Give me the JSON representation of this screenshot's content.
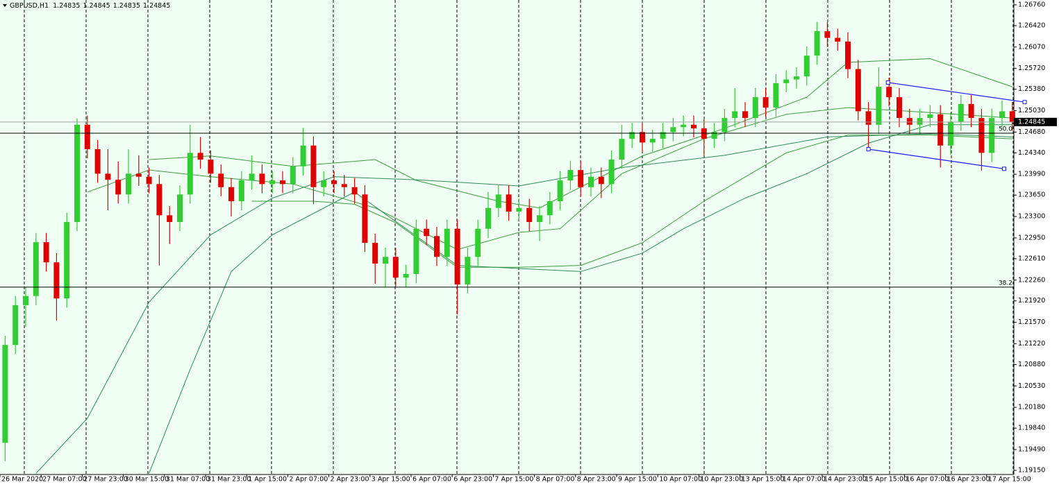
{
  "chart_data": {
    "type": "candlestick",
    "title": "GBPUSD,H1",
    "quote": [
      1.24835,
      1.24845,
      1.24835,
      1.24845
    ],
    "categories": [
      "26 Mar 2020",
      null,
      null,
      null,
      "27 Mar 07:00",
      null,
      null,
      null,
      "27 Mar 23:00",
      null,
      null,
      null,
      "30 Mar 15:00",
      null,
      null,
      null,
      "31 Mar 07:00",
      null,
      null,
      null,
      "31 Mar 23:00",
      null,
      null,
      null,
      "1 Apr 15:00",
      null,
      null,
      null,
      "2 Apr 07:00",
      null,
      null,
      null,
      "2 Apr 23:00",
      null,
      null,
      null,
      "3 Apr 15:00",
      null,
      null,
      null,
      "6 Apr 07:00",
      null,
      null,
      null,
      "6 Apr 23:00",
      null,
      null,
      null,
      "7 Apr 15:00",
      null,
      null,
      null,
      "8 Apr 07:00",
      null,
      null,
      null,
      "8 Apr 23:00",
      null,
      null,
      null,
      "9 Apr 15:00",
      null,
      null,
      null,
      "10 Apr 07:00",
      null,
      null,
      null,
      "10 Apr 23:00",
      null,
      null,
      null,
      "13 Apr 15:00",
      null,
      null,
      null,
      "14 Apr 07:00",
      null,
      null,
      null,
      "14 Apr 23:00",
      null,
      null,
      null,
      "15 Apr 15:00",
      null,
      null,
      null,
      "16 Apr 07:00",
      null,
      null,
      null,
      "16 Apr 23:00",
      null,
      null,
      null,
      "17 Apr 15:00",
      null,
      null
    ],
    "open": [
      1.196,
      1.212,
      1.2185,
      1.22,
      1.2288,
      1.2255,
      1.2196,
      1.2321,
      1.248,
      1.244,
      1.24,
      1.239,
      1.2366,
      1.24,
      1.2395,
      1.2383,
      1.2332,
      1.2321,
      1.2366,
      1.2434,
      1.2423,
      1.24,
      1.2378,
      1.2355,
      1.2389,
      1.24,
      1.2383,
      1.2389,
      1.2383,
      1.2412,
      1.2446,
      1.2378,
      1.2389,
      1.2383,
      1.2378,
      1.2366,
      1.2287,
      1.2253,
      1.2264,
      1.223,
      1.2236,
      1.231,
      1.2298,
      1.2264,
      1.231,
      1.2219,
      1.2264,
      1.231,
      1.2344,
      1.2366,
      1.2338,
      1.2344,
      1.2321,
      1.2332,
      1.2355,
      1.2389,
      1.2406,
      1.2378,
      1.2395,
      1.2383,
      1.2423,
      1.2457,
      1.2468,
      1.2451,
      1.2457,
      1.2468,
      1.2476,
      1.248,
      1.2474,
      1.2457,
      1.2468,
      1.2491,
      1.2502,
      1.2491,
      1.2525,
      1.2508,
      1.2548,
      1.2554,
      1.2559,
      1.2593,
      1.2633,
      1.2622,
      1.2616,
      1.2571,
      1.2502,
      1.248,
      1.2542,
      1.2525,
      1.2491,
      1.248,
      1.2491,
      1.2497,
      1.2446,
      1.2485,
      1.2514,
      1.2491,
      1.2434,
      1.2491,
      1.2502
    ],
    "high": [
      1.2135,
      1.22,
      1.2215,
      1.2303,
      1.2303,
      1.227,
      1.2336,
      1.249,
      1.2495,
      1.2455,
      1.244,
      1.242,
      1.244,
      1.243,
      1.241,
      1.2398,
      1.2347,
      1.2381,
      1.248,
      1.246,
      1.2438,
      1.2415,
      1.2393,
      1.2404,
      1.243,
      1.2415,
      1.2404,
      1.2404,
      1.2427,
      1.2475,
      1.2461,
      1.2404,
      1.2404,
      1.2398,
      1.2393,
      1.2381,
      1.2302,
      1.2279,
      1.2279,
      1.2251,
      1.2325,
      1.2325,
      1.2313,
      1.2325,
      1.2325,
      1.2279,
      1.2325,
      1.237,
      1.2381,
      1.2381,
      1.2359,
      1.2359,
      1.2347,
      1.237,
      1.2404,
      1.2421,
      1.2421,
      1.241,
      1.241,
      1.2438,
      1.248,
      1.2483,
      1.2483,
      1.2472,
      1.2483,
      1.2491,
      1.2495,
      1.2495,
      1.2489,
      1.2483,
      1.2506,
      1.254,
      1.2517,
      1.254,
      1.254,
      1.2563,
      1.2569,
      1.2574,
      1.2608,
      1.2648,
      1.2648,
      1.2637,
      1.2631,
      1.2586,
      1.2517,
      1.2574,
      1.2557,
      1.254,
      1.2506,
      1.2506,
      1.2512,
      1.2512,
      1.25,
      1.2529,
      1.2529,
      1.2506,
      1.2506,
      1.252,
      1.2517
    ],
    "low": [
      1.193,
      1.2105,
      1.215,
      1.2185,
      1.224,
      1.216,
      1.2181,
      1.2306,
      1.2425,
      1.2385,
      1.234,
      1.2351,
      1.2351,
      1.238,
      1.2368,
      1.225,
      1.2285,
      1.2306,
      1.2351,
      1.2408,
      1.2385,
      1.2363,
      1.233,
      1.234,
      1.2374,
      1.2368,
      1.2368,
      1.2368,
      1.2368,
      1.2397,
      1.235,
      1.2363,
      1.2368,
      1.2363,
      1.2351,
      1.2272,
      1.222,
      1.2215,
      1.2215,
      1.2215,
      1.2221,
      1.2283,
      1.2249,
      1.2249,
      1.217,
      1.2204,
      1.2249,
      1.2295,
      1.2329,
      1.2323,
      1.2323,
      1.2306,
      1.229,
      1.2317,
      1.234,
      1.2374,
      1.2363,
      1.2363,
      1.236,
      1.2368,
      1.2408,
      1.2442,
      1.2436,
      1.2436,
      1.2442,
      1.2453,
      1.2461,
      1.2459,
      1.243,
      1.2442,
      1.2453,
      1.2476,
      1.2476,
      1.2476,
      1.2493,
      1.2493,
      1.2533,
      1.2539,
      1.2544,
      1.2578,
      1.2607,
      1.2601,
      1.2556,
      1.2487,
      1.244,
      1.2465,
      1.251,
      1.2476,
      1.2465,
      1.2465,
      1.2476,
      1.241,
      1.2431,
      1.247,
      1.2476,
      1.2405,
      1.2419,
      1.2476,
      1.247
    ],
    "close": [
      1.212,
      1.2185,
      1.22,
      1.2288,
      1.2255,
      1.2196,
      1.2321,
      1.248,
      1.244,
      1.24,
      1.239,
      1.2366,
      1.24,
      1.2395,
      1.2383,
      1.2332,
      1.2321,
      1.2366,
      1.2434,
      1.2423,
      1.24,
      1.2378,
      1.2355,
      1.2389,
      1.24,
      1.2383,
      1.2389,
      1.2383,
      1.2412,
      1.2446,
      1.2378,
      1.2389,
      1.2383,
      1.2378,
      1.2366,
      1.2287,
      1.2253,
      1.2264,
      1.223,
      1.2236,
      1.231,
      1.2298,
      1.2264,
      1.231,
      1.2219,
      1.2264,
      1.231,
      1.2344,
      1.2366,
      1.2338,
      1.2344,
      1.2321,
      1.2332,
      1.2355,
      1.2389,
      1.2406,
      1.2378,
      1.2395,
      1.2383,
      1.2423,
      1.2457,
      1.2468,
      1.2451,
      1.2457,
      1.2468,
      1.2476,
      1.248,
      1.2474,
      1.2457,
      1.2468,
      1.2491,
      1.2502,
      1.2491,
      1.2525,
      1.2508,
      1.2548,
      1.2554,
      1.2559,
      1.2593,
      1.2633,
      1.2622,
      1.2616,
      1.2571,
      1.2502,
      1.248,
      1.2542,
      1.2525,
      1.2491,
      1.248,
      1.2491,
      1.2497,
      1.2446,
      1.2485,
      1.2514,
      1.2491,
      1.2434,
      1.2491,
      1.2502,
      1.24845
    ],
    "up_color": "#32cd32",
    "down_color": "#e00000",
    "ylim": [
      1.19082,
      1.26839
    ],
    "yticks": [
      {
        "value": 1.2676,
        "label": "1.26760"
      },
      {
        "value": 1.2642,
        "label": "1.26420"
      },
      {
        "value": 1.2607,
        "label": "1.26070"
      },
      {
        "value": 1.2572,
        "label": "1.25720"
      },
      {
        "value": 1.2538,
        "label": "1.25380"
      },
      {
        "value": 1.2503,
        "label": "1.25030"
      },
      {
        "value": 1.2468,
        "label": "1.24680"
      },
      {
        "value": 1.2434,
        "label": "1.24340"
      },
      {
        "value": 1.2399,
        "label": "1.23990"
      },
      {
        "value": 1.2365,
        "label": "1.23650"
      },
      {
        "value": 1.233,
        "label": "1.23300"
      },
      {
        "value": 1.2295,
        "label": "1.22950"
      },
      {
        "value": 1.2261,
        "label": "1.22610"
      },
      {
        "value": 1.2226,
        "label": "1.22260"
      },
      {
        "value": 1.2192,
        "label": "1.21920"
      },
      {
        "value": 1.2157,
        "label": "1.21570"
      },
      {
        "value": 1.2122,
        "label": "1.21220"
      },
      {
        "value": 1.2088,
        "label": "1.20880"
      },
      {
        "value": 1.2053,
        "label": "1.20530"
      },
      {
        "value": 1.2018,
        "label": "1.20180"
      },
      {
        "value": 1.1984,
        "label": "1.19840"
      },
      {
        "value": 1.1949,
        "label": "1.19490"
      },
      {
        "value": 1.1915,
        "label": "1.19150"
      }
    ],
    "overlays": [
      {
        "color": "#3a9d3a",
        "x": [
          14,
          20,
          28,
          36,
          40,
          48,
          52,
          56,
          62,
          70,
          78,
          82,
          90,
          98
        ],
        "values": [
          1.2423,
          1.2429,
          1.2412,
          1.2423,
          1.2389,
          1.2355,
          1.2344,
          1.2378,
          1.2429,
          1.2474,
          1.2525,
          1.2582,
          1.2588,
          1.2542
        ]
      },
      {
        "color": "#3a9d3a",
        "x": [
          8,
          14,
          20,
          28,
          36,
          44,
          50,
          54,
          60,
          68,
          76,
          82,
          88,
          98
        ],
        "values": [
          1.237,
          1.2406,
          1.2395,
          1.2383,
          1.2344,
          1.2276,
          1.2304,
          1.231,
          1.24,
          1.2457,
          1.2497,
          1.2508,
          1.2502,
          1.2491
        ]
      },
      {
        "color": "#3a9d3a",
        "x": [
          24,
          30,
          34,
          38,
          44,
          50,
          56,
          62,
          68,
          76,
          82,
          90,
          98
        ],
        "values": [
          1.2355,
          1.2355,
          1.235,
          1.232,
          1.2247,
          1.2247,
          1.225,
          1.2287,
          1.2355,
          1.2434,
          1.2463,
          1.2463,
          1.2457
        ]
      },
      {
        "color": "#2e8b57",
        "x": [
          3,
          8,
          14,
          20,
          26,
          32,
          40,
          50,
          60,
          70,
          80,
          90,
          98
        ],
        "values": [
          1.191,
          1.2,
          1.219,
          1.23,
          1.236,
          1.2395,
          1.239,
          1.238,
          1.241,
          1.243,
          1.246,
          1.2465,
          1.246
        ]
      },
      {
        "color": "#2e8b57",
        "x": [
          14,
          18,
          22,
          26,
          34,
          44,
          56,
          62,
          66,
          72,
          78,
          84,
          90,
          98
        ],
        "values": [
          1.191,
          1.208,
          1.224,
          1.23,
          1.237,
          1.225,
          1.224,
          1.227,
          1.231,
          1.236,
          1.24,
          1.245,
          1.248,
          1.248
        ]
      }
    ],
    "channel": [
      {
        "color": "#1a1aff",
        "x": [
          85.9,
          99.2
        ],
        "values": [
          1.2549,
          1.2517
        ]
      },
      {
        "color": "#1a1aff",
        "x": [
          84,
          97.2
        ],
        "values": [
          1.244,
          1.2408
        ]
      }
    ],
    "levels": [
      {
        "value": 1.24662,
        "label": "50.0"
      },
      {
        "value": 1.22145,
        "label": "38.2"
      }
    ],
    "last_price": 1.24845
  }
}
